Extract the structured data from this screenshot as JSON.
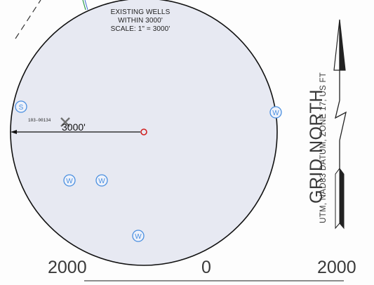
{
  "legend": {
    "line1": "EXISTING WELLS",
    "line2": "WITHIN 3000'",
    "line3": "SCALE: 1\" = 3000'"
  },
  "radius_label": "3000'",
  "well_id_label": "103-00134",
  "well_symbols": {
    "water": "W",
    "sewer": "S"
  },
  "scale_bar": {
    "left": "2000",
    "center": "0",
    "right": "2000"
  },
  "north_arrow": {
    "title": "GRID NORTH",
    "datum": "UTM, NAD83 DATUM, ZONE 17, US FT"
  },
  "colors": {
    "circle_fill": "#e7e9f2",
    "circle_stroke": "#111111",
    "well_symbol": "#4a8fe0",
    "center_marker": "#d02020",
    "plugged_well": "#707070"
  }
}
